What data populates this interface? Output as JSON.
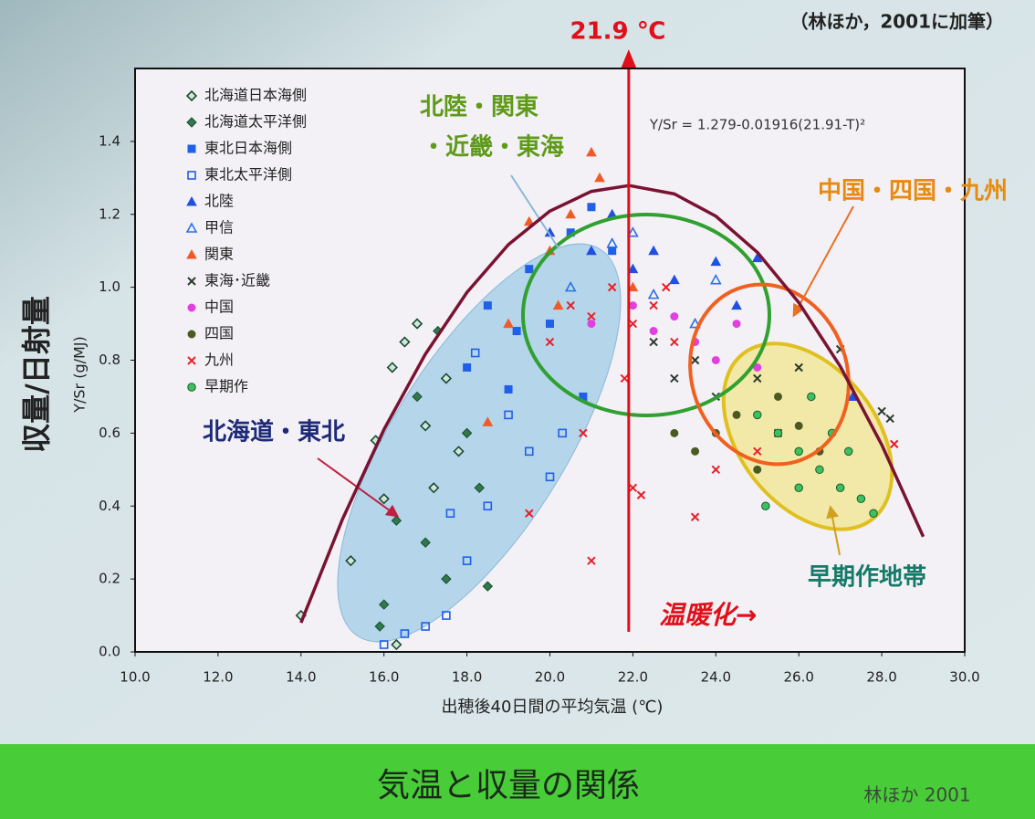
{
  "chart_data": {
    "type": "scatter",
    "title": "気温と収量の関係",
    "source": "林ほか 2001",
    "note": "（林ほか，2001に加筆）",
    "xlabel": "出穂後40日間の平均気温 (℃)",
    "ylabel": "収量/日射量",
    "ylabel_sub": "Y/Sr (g/MJ)",
    "equation": "Y/Sr = 1.279-0.01916(21.91-T)²",
    "xlim": [
      10,
      30
    ],
    "ylim": [
      0,
      1.6
    ],
    "xticks": [
      {
        "value": 10,
        "label": "10.0"
      },
      {
        "value": 12,
        "label": "12.0"
      },
      {
        "value": 14,
        "label": "14.0"
      },
      {
        "value": 16,
        "label": "16.0"
      },
      {
        "value": 18,
        "label": "18.0"
      },
      {
        "value": 20,
        "label": "20.0"
      },
      {
        "value": 22,
        "label": "22.0"
      },
      {
        "value": 24,
        "label": "24.0"
      },
      {
        "value": 26,
        "label": "26.0"
      },
      {
        "value": 28,
        "label": "28.0"
      },
      {
        "value": 30,
        "label": "30.0"
      }
    ],
    "yticks": [
      {
        "value": 0,
        "label": "0.0"
      },
      0.2,
      0.4,
      0.6,
      0.8,
      {
        "value": 1,
        "label": "1.0"
      },
      1.2,
      1.4
    ],
    "reference_line": {
      "value": 21.9,
      "label": "21.9 ℃",
      "color": "#e0101a"
    },
    "warming_label": "温暖化→",
    "annotations": [
      {
        "text": "北陸・関東",
        "color": "#5f9a18"
      },
      {
        "text": "・近畿・東海",
        "color": "#5f9a18"
      },
      {
        "text": "中国・四国・九州",
        "color": "#e88a10"
      },
      {
        "text": "北海道・東北",
        "color": "#1e2a78"
      },
      {
        "text": "早期作地帯",
        "color": "#157a68"
      }
    ],
    "curve": {
      "color": "#7a1232",
      "x": [
        14,
        15,
        16,
        17,
        18,
        19,
        20,
        21,
        21.91,
        23,
        24,
        25,
        26,
        27,
        28,
        29
      ],
      "values": [
        0.08,
        0.364,
        0.61,
        0.817,
        0.986,
        1.117,
        1.209,
        1.263,
        1.279,
        1.256,
        1.195,
        1.096,
        0.958,
        0.783,
        0.568,
        0.316
      ]
    },
    "series": [
      {
        "name": "北海道日本海側",
        "color": "#2e8a5a",
        "marker": "diamond-open",
        "x": [
          14,
          15.2,
          15.8,
          16,
          16.2,
          16.5,
          16.8,
          17,
          17.2,
          17.5,
          17.8,
          16.3
        ],
        "values": [
          0.1,
          0.25,
          0.58,
          0.42,
          0.78,
          0.85,
          0.9,
          0.62,
          0.45,
          0.75,
          0.55,
          0.02
        ]
      },
      {
        "name": "北海道太平洋側",
        "color": "#2f7a4a",
        "marker": "diamond",
        "x": [
          16,
          16.3,
          16.8,
          17.3,
          17.5,
          18,
          18.3,
          18.5,
          17,
          15.9
        ],
        "values": [
          0.13,
          0.36,
          0.7,
          0.88,
          0.2,
          0.6,
          0.45,
          0.18,
          0.3,
          0.07
        ]
      },
      {
        "name": "東北日本海側",
        "color": "#2060e8",
        "marker": "square",
        "x": [
          18,
          18.5,
          19,
          19.5,
          20,
          20.5,
          21,
          21.5,
          19.2,
          20.8
        ],
        "values": [
          0.78,
          0.95,
          0.72,
          1.05,
          0.9,
          1.15,
          1.22,
          1.1,
          0.88,
          0.7
        ]
      },
      {
        "name": "東北太平洋側",
        "color": "#2060e8",
        "marker": "square-open",
        "x": [
          16,
          16.5,
          17,
          17.5,
          18,
          18.5,
          19,
          19.5,
          20,
          20.3,
          17.6,
          18.2
        ],
        "values": [
          0.02,
          0.05,
          0.07,
          0.1,
          0.25,
          0.4,
          0.65,
          0.55,
          0.48,
          0.6,
          0.38,
          0.82
        ]
      },
      {
        "name": "北陸",
        "color": "#2050e0",
        "marker": "triangle",
        "x": [
          20,
          21,
          21.5,
          22,
          23,
          24,
          25,
          24.5,
          27.3,
          22.5
        ],
        "values": [
          1.15,
          1.1,
          1.2,
          1.05,
          1.02,
          1.07,
          1.08,
          0.95,
          0.7,
          1.1
        ]
      },
      {
        "name": "甲信",
        "color": "#2a70e8",
        "marker": "triangle-open",
        "x": [
          20.5,
          21.5,
          22.5,
          23.5,
          24,
          22
        ],
        "values": [
          1.0,
          1.12,
          0.98,
          0.9,
          1.02,
          1.15
        ]
      },
      {
        "name": "関東",
        "color": "#f05a28",
        "marker": "triangle",
        "x": [
          19.5,
          20,
          20.5,
          21,
          21.2,
          20.2,
          22,
          18.5,
          19
        ],
        "values": [
          1.18,
          1.1,
          1.2,
          1.37,
          1.3,
          0.95,
          1.0,
          0.63,
          0.9
        ]
      },
      {
        "name": "東海･近畿",
        "color": "#2a3a2a",
        "marker": "x",
        "x": [
          22.5,
          23,
          23.5,
          24,
          25,
          26,
          27,
          28,
          28.2,
          25.5
        ],
        "values": [
          0.85,
          0.75,
          0.8,
          0.7,
          0.75,
          0.78,
          0.83,
          0.66,
          0.64,
          0.6
        ]
      },
      {
        "name": "中国",
        "color": "#e040e0",
        "marker": "circle",
        "x": [
          21,
          22,
          22.5,
          23,
          23.5,
          24,
          24.5,
          25
        ],
        "values": [
          0.9,
          0.95,
          0.88,
          0.92,
          0.85,
          0.8,
          0.9,
          0.78
        ]
      },
      {
        "name": "四国",
        "color": "#4a5a20",
        "marker": "circle",
        "x": [
          23,
          23.5,
          24,
          24.5,
          25,
          25.5,
          26,
          26.5
        ],
        "values": [
          0.6,
          0.55,
          0.6,
          0.65,
          0.5,
          0.7,
          0.62,
          0.55
        ]
      },
      {
        "name": "九州",
        "color": "#e8202a",
        "marker": "x",
        "x": [
          20,
          20.5,
          21,
          21.5,
          22,
          22,
          22.5,
          23,
          23.5,
          21,
          19.5,
          22.2,
          24,
          25,
          28.3,
          21.8,
          22.8,
          20.8
        ],
        "values": [
          0.85,
          0.95,
          0.92,
          1.0,
          0.9,
          0.45,
          0.95,
          0.85,
          0.37,
          0.25,
          0.38,
          0.43,
          0.5,
          0.55,
          0.57,
          0.75,
          1.0,
          0.6
        ]
      },
      {
        "name": "早期作",
        "color": "#3ec060",
        "marker": "circle-edge",
        "x": [
          25,
          25.5,
          26,
          26.5,
          27,
          27.5,
          26,
          27.8,
          25.2,
          26.8,
          27.2,
          26.3
        ],
        "values": [
          0.65,
          0.6,
          0.55,
          0.5,
          0.45,
          0.42,
          0.45,
          0.38,
          0.4,
          0.6,
          0.55,
          0.7
        ]
      }
    ]
  }
}
